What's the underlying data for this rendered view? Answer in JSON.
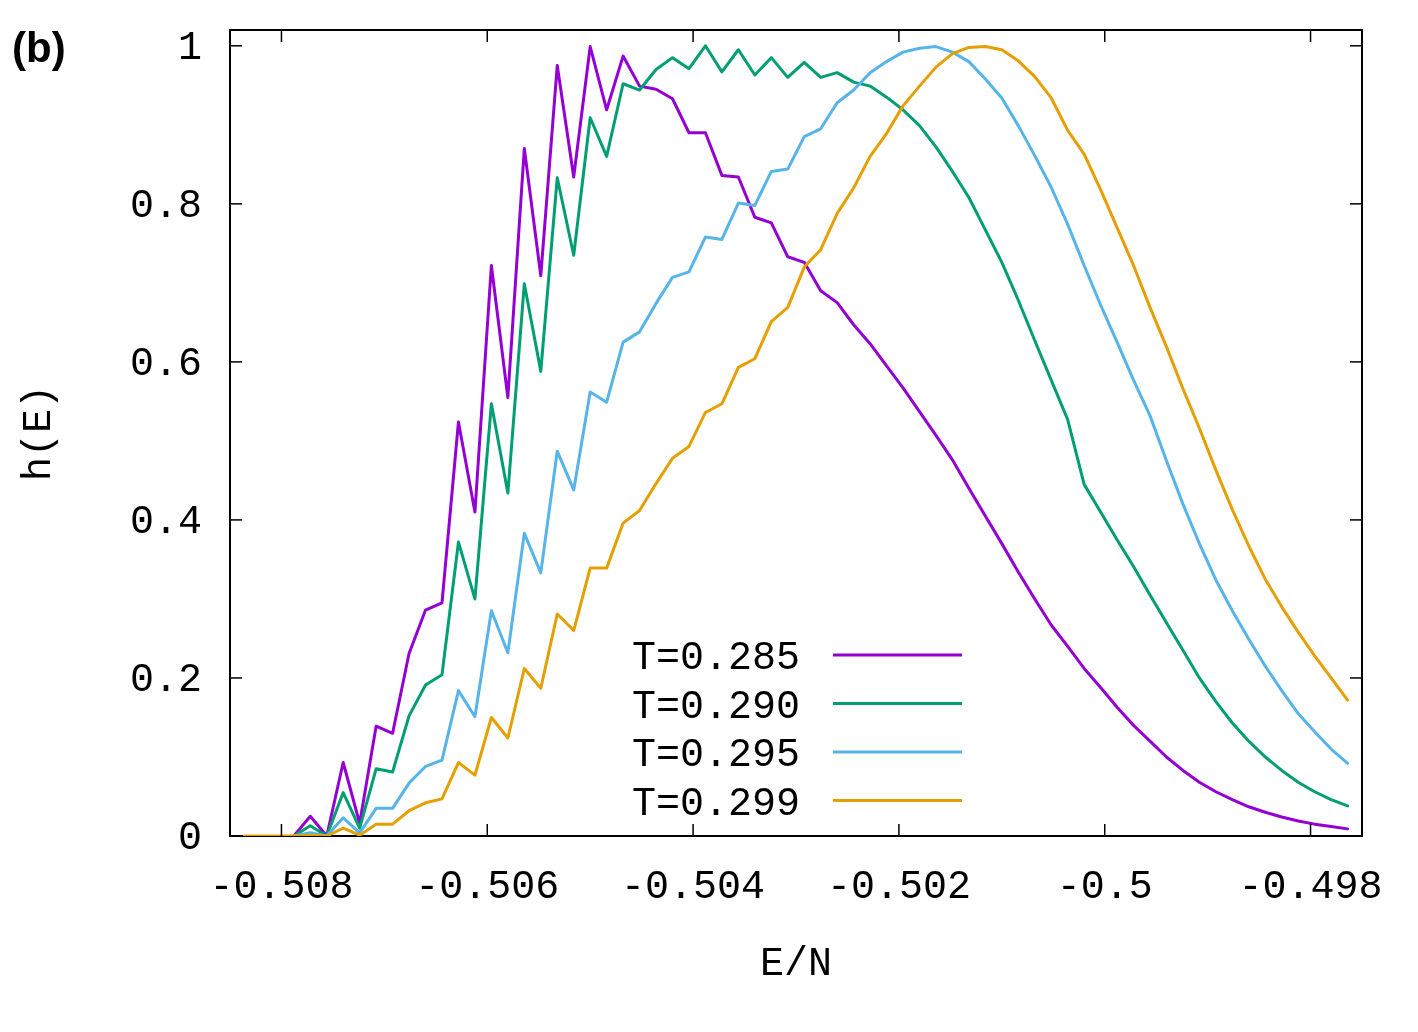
{
  "chart_data": {
    "type": "line",
    "title": "(b)",
    "xlabel": "E/N",
    "ylabel": "h(E)",
    "x": [
      -0.50836,
      -0.5082,
      -0.50804,
      -0.50788,
      -0.50772,
      -0.50756,
      -0.5074,
      -0.50724,
      -0.50708,
      -0.50692,
      -0.50676,
      -0.5066,
      -0.50644,
      -0.50628,
      -0.50612,
      -0.50596,
      -0.5058,
      -0.50564,
      -0.50548,
      -0.50532,
      -0.50516,
      -0.505,
      -0.50484,
      -0.50468,
      -0.50452,
      -0.50436,
      -0.5042,
      -0.50404,
      -0.50388,
      -0.50372,
      -0.50356,
      -0.5034,
      -0.50324,
      -0.50308,
      -0.50292,
      -0.50276,
      -0.5026,
      -0.50244,
      -0.50228,
      -0.50212,
      -0.50196,
      -0.5018,
      -0.50164,
      -0.50148,
      -0.50132,
      -0.50116,
      -0.501,
      -0.50084,
      -0.50068,
      -0.50052,
      -0.50036,
      -0.5002,
      -0.50004,
      -0.49988,
      -0.49972,
      -0.49956,
      -0.4994,
      -0.49924,
      -0.49908,
      -0.49892,
      -0.49876,
      -0.4986,
      -0.49844,
      -0.49828,
      -0.49812,
      -0.49796,
      -0.4978,
      -0.49764
    ],
    "series": [
      {
        "name": "T=0.285",
        "color": "#9400d3",
        "values": [
          null,
          null,
          null,
          0,
          0.025,
          0,
          0.093,
          0.016,
          0.139,
          0.13,
          0.231,
          0.286,
          0.295,
          0.524,
          0.41,
          0.722,
          0.555,
          0.87,
          0.709,
          0.975,
          0.834,
          0.999,
          0.919,
          0.987,
          0.949,
          0.945,
          0.933,
          0.89,
          0.89,
          0.836,
          0.834,
          0.783,
          0.776,
          0.733,
          0.726,
          0.69,
          0.675,
          0.647,
          0.623,
          0.595,
          0.567,
          0.537,
          0.507,
          0.476,
          0.44,
          0.405,
          0.37,
          0.334,
          0.3,
          0.267,
          0.24,
          0.212,
          0.188,
          0.163,
          0.14,
          0.12,
          0.1,
          0.083,
          0.068,
          0.056,
          0.046,
          0.037,
          0.03,
          0.024,
          0.019,
          0.015,
          0.012,
          0.009
        ]
      },
      {
        "name": "T=0.290",
        "color": "#009e73",
        "values": [
          null,
          null,
          null,
          0,
          0.013,
          0,
          0.055,
          0.01,
          0.085,
          0.081,
          0.152,
          0.191,
          0.204,
          0.372,
          0.3,
          0.547,
          0.434,
          0.699,
          0.588,
          0.833,
          0.735,
          0.909,
          0.86,
          0.952,
          0.944,
          0.97,
          0.985,
          0.971,
          1,
          0.967,
          0.995,
          0.963,
          0.985,
          0.96,
          0.979,
          0.96,
          0.966,
          0.954,
          0.949,
          0.935,
          0.919,
          0.899,
          0.872,
          0.841,
          0.808,
          0.767,
          0.726,
          0.678,
          0.627,
          0.577,
          0.527,
          0.445,
          0.41,
          0.375,
          0.341,
          0.305,
          0.27,
          0.235,
          0.2,
          0.17,
          0.143,
          0.12,
          0.1,
          0.083,
          0.068,
          0.056,
          0.046,
          0.038
        ]
      },
      {
        "name": "T=0.295",
        "color": "#56b4e9",
        "values": [
          null,
          null,
          null,
          0,
          0.004,
          0,
          0.023,
          0.004,
          0.035,
          0.035,
          0.067,
          0.088,
          0.096,
          0.184,
          0.151,
          0.285,
          0.232,
          0.383,
          0.333,
          0.487,
          0.438,
          0.562,
          0.549,
          0.625,
          0.638,
          0.674,
          0.707,
          0.714,
          0.758,
          0.755,
          0.801,
          0.798,
          0.841,
          0.844,
          0.885,
          0.895,
          0.928,
          0.944,
          0.966,
          0.98,
          0.992,
          0.997,
          0.999,
          0.992,
          0.98,
          0.958,
          0.934,
          0.899,
          0.861,
          0.821,
          0.774,
          0.722,
          0.672,
          0.625,
          0.577,
          0.532,
          0.475,
          0.42,
          0.37,
          0.324,
          0.285,
          0.249,
          0.215,
          0.184,
          0.155,
          0.132,
          0.11,
          0.092
        ]
      },
      {
        "name": "T=0.299",
        "color": "#e69f00",
        "values": [
          0,
          0,
          0,
          0,
          0.001,
          0,
          0.01,
          0.001,
          0.015,
          0.015,
          0.032,
          0.042,
          0.047,
          0.093,
          0.077,
          0.15,
          0.124,
          0.212,
          0.187,
          0.281,
          0.26,
          0.339,
          0.339,
          0.396,
          0.412,
          0.446,
          0.478,
          0.493,
          0.536,
          0.547,
          0.593,
          0.604,
          0.651,
          0.669,
          0.72,
          0.742,
          0.788,
          0.82,
          0.86,
          0.889,
          0.924,
          0.949,
          0.973,
          0.99,
          0.998,
          0.999,
          0.995,
          0.981,
          0.961,
          0.934,
          0.893,
          0.863,
          0.818,
          0.77,
          0.722,
          0.669,
          0.619,
          0.566,
          0.516,
          0.463,
          0.413,
          0.367,
          0.325,
          0.29,
          0.258,
          0.228,
          0.2,
          0.172
        ]
      }
    ],
    "xlim": [
      -0.5085,
      -0.4975
    ],
    "xticks": [
      -0.508,
      -0.506,
      -0.504,
      -0.502,
      -0.5,
      -0.498
    ],
    "ylim": [
      0,
      1.02
    ],
    "yticks": [
      0,
      0.2,
      0.4,
      0.6,
      0.8,
      1
    ],
    "legend": "bottom",
    "line_style": "solid",
    "marker": "none",
    "grid": false
  }
}
